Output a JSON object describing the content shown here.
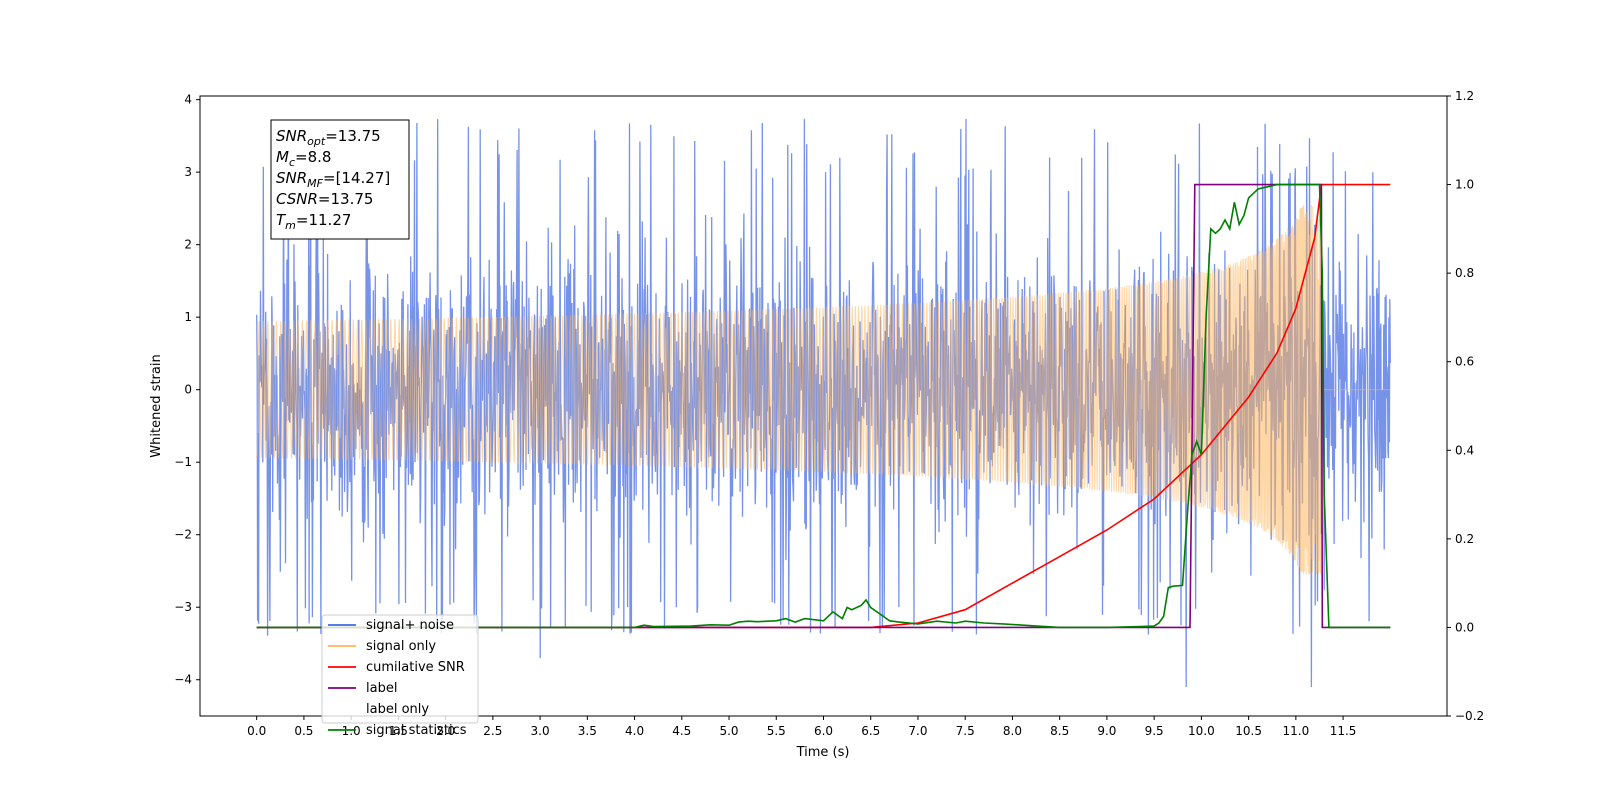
{
  "chart_data": {
    "type": "line",
    "xlabel": "Time (s)",
    "ylabel": "Whitened strain",
    "xlim": [
      -0.6,
      12.6
    ],
    "ylim": [
      -4.5,
      4.05
    ],
    "y2lim": [
      -0.2,
      1.2
    ],
    "x_ticks": [
      0.0,
      0.5,
      1.0,
      1.5,
      2.0,
      2.5,
      3.0,
      3.5,
      4.0,
      4.5,
      5.0,
      5.5,
      6.0,
      6.5,
      7.0,
      7.5,
      8.0,
      8.5,
      9.0,
      9.5,
      10.0,
      10.5,
      11.0,
      11.5
    ],
    "x_tick_labels": [
      "0.0",
      "0.5",
      "1.0",
      "1.5",
      "2.0",
      "2.5",
      "3.0",
      "3.5",
      "4.0",
      "4.5",
      "5.0",
      "5.5",
      "6.0",
      "6.5",
      "7.0",
      "7.5",
      "8.0",
      "8.5",
      "9.0",
      "9.5",
      "10.0",
      "10.5",
      "11.0",
      "11.5"
    ],
    "y_ticks": [
      4,
      3,
      2,
      1,
      0,
      -1,
      -2,
      -3,
      -4
    ],
    "y_tick_labels": [
      "4",
      "3",
      "2",
      "1",
      "0",
      "−1",
      "−2",
      "−3",
      "−4"
    ],
    "y2_ticks": [
      1.2,
      1.0,
      0.8,
      0.6,
      0.4,
      0.2,
      0.0,
      -0.2
    ],
    "y2_tick_labels": [
      "1.2",
      "1.0",
      "0.8",
      "0.6",
      "0.4",
      "0.2",
      "0.0",
      "−0.2"
    ],
    "grid": false,
    "legend_position": "bottom-left",
    "annotation": {
      "lines": [
        {
          "sym": "SNR",
          "sub": "opt",
          "rest": "=13.75"
        },
        {
          "sym": "M",
          "sub": "c",
          "rest": "=8.8"
        },
        {
          "sym": "SNR",
          "sub": "MF",
          "rest": "=[14.27]"
        },
        {
          "sym": "CSNR",
          "sub": "",
          "rest": "=13.75"
        },
        {
          "sym": "T",
          "sub": "m",
          "rest": "=11.27"
        }
      ]
    },
    "series": [
      {
        "name": "signal+ noise",
        "axis": "left",
        "color": "#4169e1",
        "kind": "noise",
        "x_range": [
          0.0,
          12.0
        ],
        "sigma": 0.95,
        "peak_min": 2.9,
        "peak_max": 3.75,
        "trough_min": -3.7,
        "trough_max": -4.1
      },
      {
        "name": "signal only",
        "axis": "left",
        "color": "#ffb55a",
        "kind": "chirp",
        "x_range": [
          0.0,
          12.0
        ],
        "merger_time": 11.27,
        "peak_amplitude": 2.55
      },
      {
        "name": "cumilative SNR",
        "axis": "right",
        "color": "#ff0000",
        "x": [
          0.0,
          6.5,
          7.0,
          7.5,
          8.0,
          8.5,
          9.0,
          9.5,
          10.0,
          10.5,
          10.8,
          11.0,
          11.2,
          11.27,
          12.0
        ],
        "y": [
          0.0,
          0.0,
          0.01,
          0.04,
          0.1,
          0.16,
          0.22,
          0.29,
          0.39,
          0.52,
          0.62,
          0.72,
          0.88,
          1.0,
          1.0
        ]
      },
      {
        "name": "label",
        "axis": "right",
        "color": "#800080",
        "x": [
          0.0,
          9.88,
          9.93,
          11.27,
          11.28,
          12.0
        ],
        "y": [
          0.0,
          0.0,
          1.0,
          1.0,
          0.0,
          0.0
        ]
      },
      {
        "name": "label only",
        "axis": "right",
        "color": "#ffffff",
        "legend_only": true
      },
      {
        "name": "signal statistics",
        "axis": "right",
        "color": "#008000",
        "x": [
          0.0,
          4.0,
          4.1,
          4.2,
          4.6,
          4.8,
          5.0,
          5.1,
          5.2,
          5.3,
          5.5,
          5.6,
          5.7,
          5.8,
          6.0,
          6.1,
          6.2,
          6.25,
          6.3,
          6.4,
          6.45,
          6.5,
          6.6,
          6.7,
          6.8,
          7.0,
          7.2,
          7.4,
          7.5,
          7.7,
          7.9,
          8.2,
          8.5,
          9.0,
          9.5,
          9.55,
          9.6,
          9.65,
          9.7,
          9.8,
          9.85,
          9.9,
          9.95,
          10.0,
          10.05,
          10.1,
          10.15,
          10.2,
          10.25,
          10.3,
          10.35,
          10.4,
          10.45,
          10.5,
          10.55,
          10.6,
          10.8,
          11.0,
          11.25,
          11.28,
          11.3,
          11.35,
          12.0
        ],
        "y": [
          0.0,
          0.0,
          0.005,
          0.002,
          0.003,
          0.006,
          0.005,
          0.012,
          0.014,
          0.013,
          0.015,
          0.02,
          0.012,
          0.02,
          0.015,
          0.035,
          0.02,
          0.045,
          0.04,
          0.05,
          0.062,
          0.045,
          0.03,
          0.015,
          0.012,
          0.008,
          0.014,
          0.01,
          0.014,
          0.01,
          0.008,
          0.004,
          0.0,
          0.0,
          0.003,
          0.01,
          0.025,
          0.09,
          0.093,
          0.095,
          0.25,
          0.39,
          0.42,
          0.39,
          0.7,
          0.9,
          0.89,
          0.9,
          0.92,
          0.9,
          0.96,
          0.91,
          0.93,
          0.97,
          0.98,
          0.99,
          1.0,
          1.0,
          1.0,
          0.8,
          0.3,
          0.0,
          0.0
        ]
      }
    ]
  }
}
